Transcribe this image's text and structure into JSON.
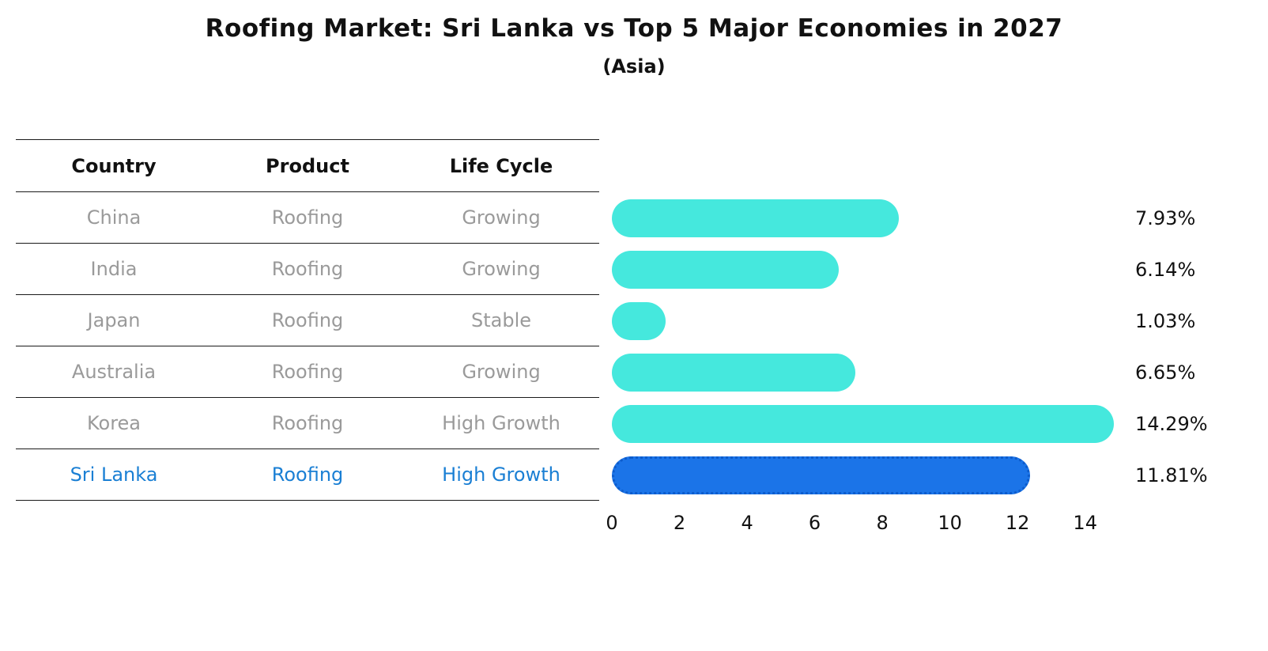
{
  "title": "Roofing Market: Sri Lanka vs Top 5 Major Economies in 2027",
  "subtitle": "(Asia)",
  "table": {
    "headers": {
      "country": "Country",
      "product": "Product",
      "life_cycle": "Life Cycle"
    }
  },
  "chart_data": {
    "type": "bar",
    "orientation": "horizontal",
    "title": "Roofing Market: Sri Lanka vs Top 5 Major Economies in 2027",
    "subtitle": "(Asia)",
    "categories": [
      "China",
      "India",
      "Japan",
      "Australia",
      "Korea",
      "Sri Lanka"
    ],
    "values": [
      7.93,
      6.14,
      1.03,
      6.65,
      14.29,
      11.81
    ],
    "rows": [
      {
        "country": "China",
        "product": "Roofing",
        "life_cycle": "Growing",
        "value": 7.93,
        "label": "7.93%",
        "highlight": false
      },
      {
        "country": "India",
        "product": "Roofing",
        "life_cycle": "Growing",
        "value": 6.14,
        "label": "6.14%",
        "highlight": false
      },
      {
        "country": "Japan",
        "product": "Roofing",
        "life_cycle": "Stable",
        "value": 1.03,
        "label": "1.03%",
        "highlight": false
      },
      {
        "country": "Australia",
        "product": "Roofing",
        "life_cycle": "Growing",
        "value": 6.65,
        "label": "6.65%",
        "highlight": false
      },
      {
        "country": "Korea",
        "product": "Roofing",
        "life_cycle": "High Growth",
        "value": 14.29,
        "label": "14.29%",
        "highlight": false
      },
      {
        "country": "Sri Lanka",
        "product": "Roofing",
        "life_cycle": "High Growth",
        "value": 11.81,
        "label": "11.81%",
        "highlight": true
      }
    ],
    "x_ticks": [
      0,
      2,
      4,
      6,
      8,
      10,
      12,
      14
    ],
    "xlim": [
      0,
      15.2
    ],
    "legend": "none",
    "grid": false,
    "colors": {
      "bar": "#45e8dd",
      "highlight_bar": "#1b74e8",
      "highlight_text": "#1a7fd4",
      "row_text": "#9a9a9a",
      "header_text": "#111111"
    }
  }
}
